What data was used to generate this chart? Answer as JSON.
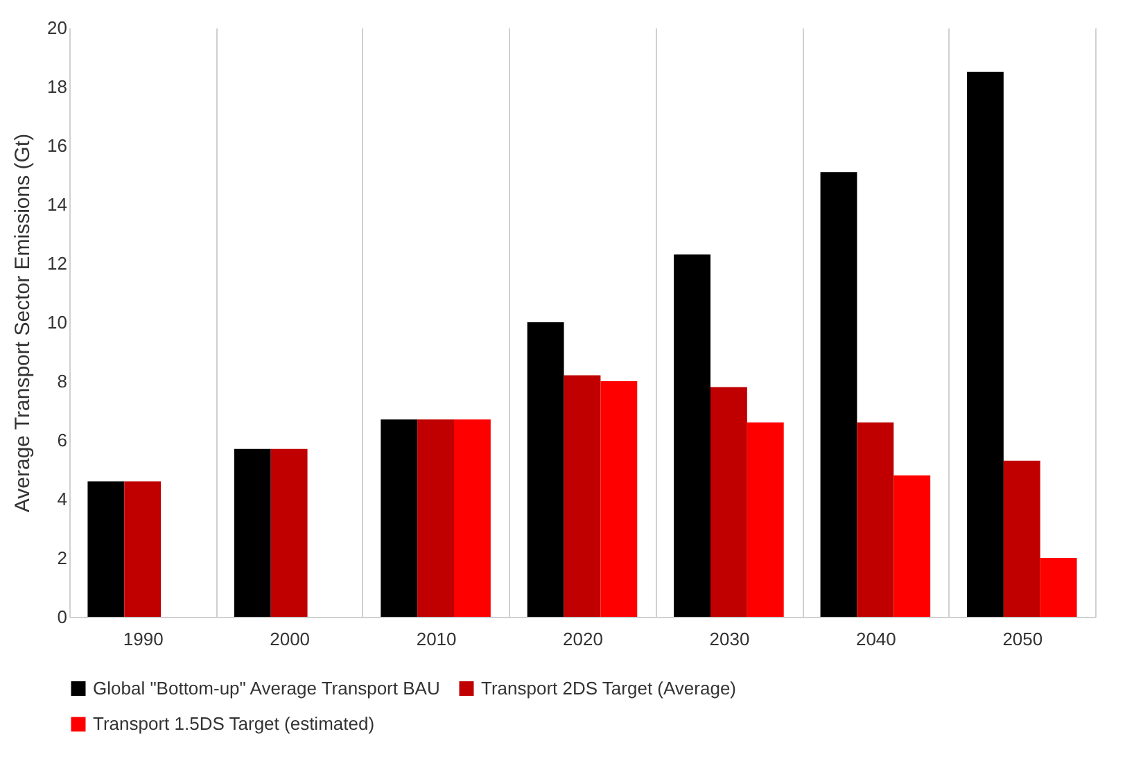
{
  "chart_data": {
    "type": "bar",
    "ylabel": "Average Transport Sector Emissions (Gt)",
    "categories": [
      "1990",
      "2000",
      "2010",
      "2020",
      "2030",
      "2040",
      "2050"
    ],
    "series": [
      {
        "name": "Global  \"Bottom-up\" Average Transport BAU",
        "color": "#000000",
        "values": [
          4.6,
          5.7,
          6.7,
          10.0,
          12.3,
          15.1,
          18.5
        ]
      },
      {
        "name": "Transport 2DS Target (Average)",
        "color": "#c00000",
        "values": [
          4.6,
          5.7,
          6.7,
          8.2,
          7.8,
          6.6,
          5.3
        ]
      },
      {
        "name": "Transport 1.5DS Target (estimated)",
        "color": "#ff0000",
        "values": [
          null,
          null,
          6.7,
          8.0,
          6.6,
          4.8,
          2.0
        ]
      }
    ],
    "ylim": [
      0,
      20
    ],
    "yticks": [
      0,
      2,
      4,
      6,
      8,
      10,
      12,
      14,
      16,
      18,
      20
    ],
    "grid": "x",
    "legend": "bottom"
  }
}
